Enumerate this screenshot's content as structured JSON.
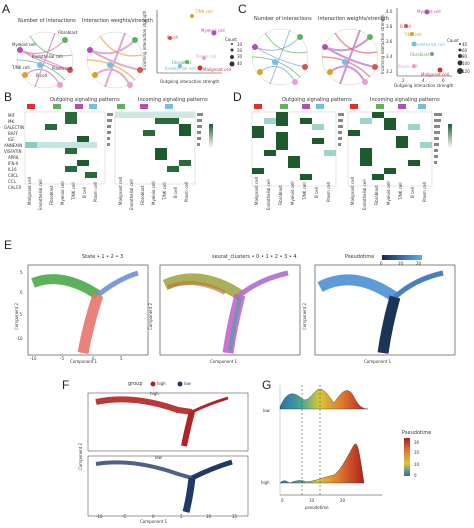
{
  "panels": {
    "A": {
      "label": "A",
      "circle1_title": "Number of interactions",
      "circle2_title": "Interaction weights/strength",
      "nodes": [
        "Fibroblast",
        "Myeloid cell",
        "Endothelial cell",
        "T/NK cell",
        "B cell",
        "Plasm cell"
      ],
      "scatter": {
        "ylabel": "Incoming interaction strength",
        "xlabel": "Outgoing interaction strength",
        "points": [
          {
            "name": "T/NK cell",
            "color": "#e0a020"
          },
          {
            "name": "Myeloid cell",
            "color": "#b050b0"
          },
          {
            "name": "B cell",
            "color": "#e05050"
          },
          {
            "name": "Plasm cell",
            "color": "#e8a0d0"
          },
          {
            "name": "Fibroblast",
            "color": "#60b060"
          },
          {
            "name": "Endothelial cell",
            "color": "#70c0e0"
          },
          {
            "name": "Malignant cell",
            "color": "#d03030"
          }
        ],
        "legend_title": "Count",
        "legend_values": [
          "10",
          "20",
          "30",
          "40"
        ]
      }
    },
    "C": {
      "label": "C",
      "circle1_title": "Number of interactions",
      "circle2_title": "Interaction weights/strength",
      "scatter": {
        "ylabel": "Incoming interaction strength",
        "xlabel": "Outgoing interaction strength",
        "points": [
          {
            "name": "Myeloid cell",
            "color": "#b050b0"
          },
          {
            "name": "B cell",
            "color": "#e05050"
          },
          {
            "name": "T/NK cell",
            "color": "#e0a020"
          },
          {
            "name": "Endothelial cell",
            "color": "#70c0e0"
          },
          {
            "name": "Fibroblast",
            "color": "#60b060"
          },
          {
            "name": "Plasm cell",
            "color": "#e8a0d0"
          },
          {
            "name": "Malignant cell",
            "color": "#d03030"
          }
        ],
        "yticks": [
          "4.0",
          "3.8",
          "3.6",
          "3.4",
          "3.2"
        ],
        "xticks": [
          "2",
          "4",
          "6"
        ],
        "legend_title": "Count",
        "legend_values": [
          "40",
          "60",
          "80",
          "100",
          "120"
        ]
      }
    },
    "B": {
      "label": "B",
      "outgoing_title": "Outgoing signaling patterns",
      "incoming_title": "Incoming signaling patterns",
      "rows": [
        "MIF",
        "MK",
        "GALECTIN",
        "BAFF",
        "IGF",
        "ANNEXIN",
        "VISFATIN",
        "APRIL",
        "IFN-II",
        "IL16",
        "CXCL",
        "CCL",
        "CALCR"
      ],
      "cols": [
        "Malignant cell",
        "Endothelial cell",
        "Fibroblast",
        "Myeloid cell",
        "T/NK cell",
        "B cell",
        "Plasm cell"
      ]
    },
    "D": {
      "label": "D",
      "outgoing_title": "Outgoing signaling patterns",
      "incoming_title": "Incoming signaling patterns",
      "cols": [
        "Malignant cell",
        "Endothelial cell",
        "Fibroblast",
        "Myeloid cell",
        "T/NK cell",
        "B cell",
        "Plasm cell"
      ]
    },
    "E": {
      "label": "E",
      "plot1_title": "State • 1 • 2 • 3",
      "plot2_title": "seurat_clusters • 0 • 1 • 2 • 3 • 4",
      "plot3_legend": "Pseudotime",
      "pseudotime_ticks": [
        "0",
        "10",
        "20"
      ],
      "xlabel": "Component 1",
      "ylabel": "Component 2",
      "xticks": [
        "-10",
        "-5",
        "0",
        "5"
      ],
      "yticks": [
        "5",
        "0",
        "-5",
        "-10"
      ]
    },
    "F": {
      "label": "F",
      "legend": "group",
      "groups": [
        {
          "name": "high",
          "color": "#b22222"
        },
        {
          "name": "low",
          "color": "#1f3a68"
        }
      ],
      "sub_high": "high",
      "sub_low": "low",
      "xlabel": "Component 1",
      "ylabel": "Component 2",
      "xticks": [
        "-10",
        "-5",
        "0",
        "5",
        "10",
        "15"
      ],
      "yticks": [
        "5",
        "0",
        "-5",
        "-10"
      ]
    },
    "G": {
      "label": "G",
      "rows": [
        "low",
        "high"
      ],
      "xlabel": "pseudotime",
      "xticks": [
        "0",
        "10",
        "20"
      ],
      "legend_title": "Pseudotime",
      "legend_values": [
        "30",
        "20",
        "10",
        "0"
      ]
    }
  }
}
